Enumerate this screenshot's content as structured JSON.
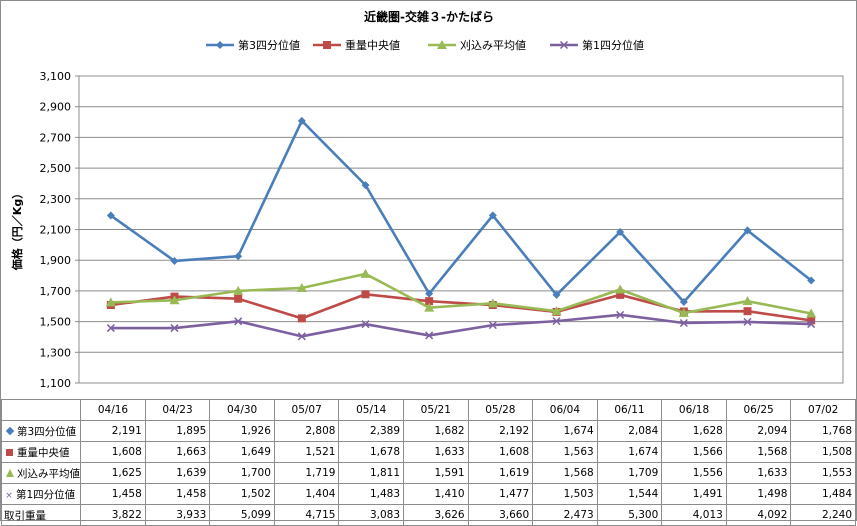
{
  "chart_data": {
    "type": "line",
    "title": "近畿圏-交雑３-かたばら",
    "ylabel": "価格（円／Kg）",
    "xlabel": "",
    "ylim": [
      1100,
      3100
    ],
    "yticks": [
      1100,
      1300,
      1500,
      1700,
      1900,
      2100,
      2300,
      2500,
      2700,
      2900,
      3100
    ],
    "ytick_labels": [
      "1,100",
      "1,300",
      "1,500",
      "1,700",
      "1,900",
      "2,100",
      "2,300",
      "2,500",
      "2,700",
      "2,900",
      "3,100"
    ],
    "grid": "horizontal",
    "legend_position": "top",
    "categories": [
      "04/16",
      "04/23",
      "04/30",
      "05/07",
      "05/14",
      "05/21",
      "05/28",
      "06/04",
      "06/11",
      "06/18",
      "06/25",
      "07/02"
    ],
    "series": [
      {
        "name": "第3四分位値",
        "color": "#4a7ebb",
        "marker": "diamond",
        "values": [
          2191,
          1895,
          1926,
          2808,
          2389,
          1682,
          2192,
          1674,
          2084,
          1628,
          2094,
          1768
        ],
        "labels": [
          "2,191",
          "1,895",
          "1,926",
          "2,808",
          "2,389",
          "1,682",
          "2,192",
          "1,674",
          "2,084",
          "1,628",
          "2,094",
          "1,768"
        ]
      },
      {
        "name": "重量中央値",
        "color": "#be4b48",
        "marker": "square",
        "values": [
          1608,
          1663,
          1649,
          1521,
          1678,
          1633,
          1608,
          1563,
          1674,
          1566,
          1568,
          1508
        ],
        "labels": [
          "1,608",
          "1,663",
          "1,649",
          "1,521",
          "1,678",
          "1,633",
          "1,608",
          "1,563",
          "1,674",
          "1,566",
          "1,568",
          "1,508"
        ]
      },
      {
        "name": "刈込み平均値",
        "color": "#98b954",
        "marker": "triangle",
        "values": [
          1625,
          1639,
          1700,
          1719,
          1811,
          1591,
          1619,
          1568,
          1709,
          1556,
          1633,
          1553
        ],
        "labels": [
          "1,625",
          "1,639",
          "1,700",
          "1,719",
          "1,811",
          "1,591",
          "1,619",
          "1,568",
          "1,709",
          "1,556",
          "1,633",
          "1,553"
        ]
      },
      {
        "name": "第1四分位値",
        "color": "#7d60a0",
        "marker": "x",
        "values": [
          1458,
          1458,
          1502,
          1404,
          1483,
          1410,
          1477,
          1503,
          1544,
          1491,
          1498,
          1484
        ],
        "labels": [
          "1,458",
          "1,458",
          "1,502",
          "1,404",
          "1,483",
          "1,410",
          "1,477",
          "1,503",
          "1,544",
          "1,491",
          "1,498",
          "1,484"
        ]
      }
    ],
    "table_extra_row": {
      "name": "取引重量",
      "values": [
        3822,
        3933,
        5099,
        4715,
        3083,
        3626,
        3660,
        2473,
        5300,
        4013,
        4092,
        2240
      ],
      "labels": [
        "3,822",
        "3,933",
        "5,099",
        "4,715",
        "3,083",
        "3,626",
        "3,660",
        "2,473",
        "5,300",
        "4,013",
        "4,092",
        "2,240"
      ]
    }
  }
}
